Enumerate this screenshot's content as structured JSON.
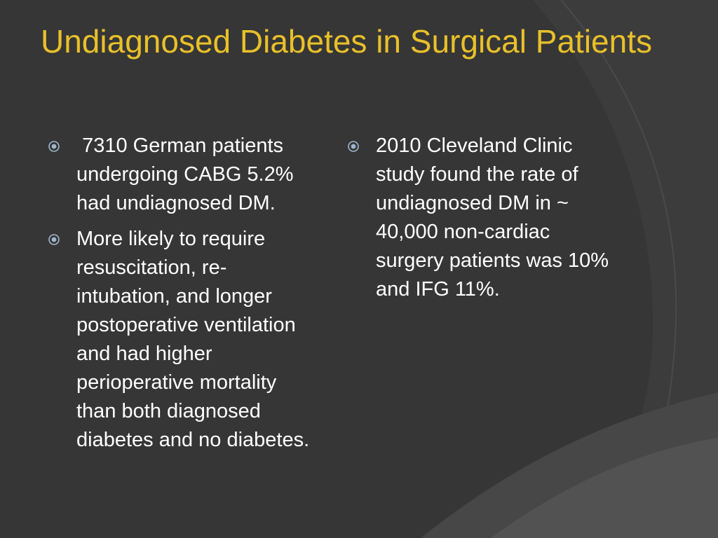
{
  "slide": {
    "title": "Undiagnosed Diabetes in Surgical Patients",
    "left_bullets": [
      " 7310 German patients undergoing CABG 5.2% had undiagnosed DM.",
      "More likely to require resuscitation, re-intubation, and longer postoperative ventilation and had higher perioperative mortality than both diagnosed diabetes and no diabetes."
    ],
    "right_bullets": [
      "2010 Cleveland Clinic study found the rate of undiagnosed DM in ~ 40,000 non-cardiac surgery patients was 10% and IFG 11%."
    ]
  },
  "colors": {
    "background": "#363636",
    "title": "#e8c02a",
    "text": "#ffffff",
    "bullet": "#9fb6cc"
  },
  "icons": {
    "bullet": "circled-dot-icon"
  }
}
